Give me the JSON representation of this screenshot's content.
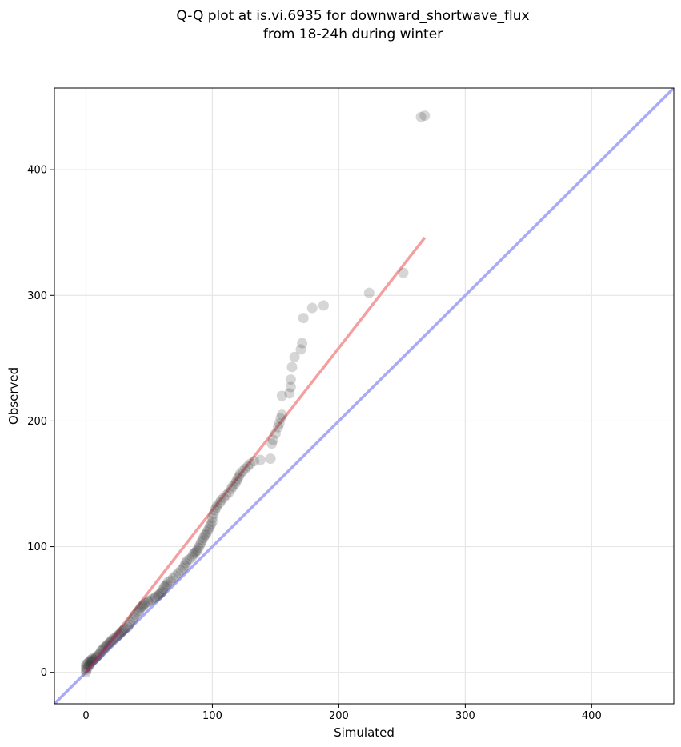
{
  "chart_data": {
    "type": "scatter",
    "title": "Q-Q plot at is.vi.6935 for downward_shortwave_flux",
    "subtitle": "from 18-24h during winter",
    "xlabel": "Simulated",
    "ylabel": "Observed",
    "xlim": [
      -25,
      465
    ],
    "ylim": [
      -25,
      465
    ],
    "xticks": [
      0,
      100,
      200,
      300,
      400
    ],
    "yticks": [
      0,
      100,
      200,
      300,
      400
    ],
    "grid": true,
    "colors": {
      "points": "#333333",
      "fit_line": "#f4a0a0",
      "identity_line": "#aaaaf5",
      "low_segment": "#a0306e"
    },
    "points": [
      [
        0,
        0
      ],
      [
        0,
        2
      ],
      [
        0,
        4
      ],
      [
        0,
        6
      ],
      [
        1,
        3
      ],
      [
        1,
        7
      ],
      [
        2,
        5
      ],
      [
        2,
        8
      ],
      [
        3,
        6
      ],
      [
        3,
        9
      ],
      [
        4,
        8
      ],
      [
        4,
        10
      ],
      [
        5,
        9
      ],
      [
        5,
        11
      ],
      [
        6,
        10
      ],
      [
        7,
        11
      ],
      [
        8,
        12
      ],
      [
        9,
        13
      ],
      [
        10,
        14
      ],
      [
        11,
        15
      ],
      [
        12,
        17
      ],
      [
        13,
        18
      ],
      [
        14,
        19
      ],
      [
        15,
        20
      ],
      [
        16,
        21
      ],
      [
        17,
        22
      ],
      [
        18,
        23
      ],
      [
        19,
        24
      ],
      [
        20,
        25
      ],
      [
        21,
        26
      ],
      [
        22,
        27
      ],
      [
        24,
        28
      ],
      [
        25,
        29
      ],
      [
        26,
        30
      ],
      [
        27,
        31
      ],
      [
        28,
        32
      ],
      [
        29,
        33
      ],
      [
        30,
        34
      ],
      [
        31,
        35
      ],
      [
        33,
        36
      ],
      [
        34,
        38
      ],
      [
        35,
        40
      ],
      [
        37,
        42
      ],
      [
        38,
        44
      ],
      [
        39,
        46
      ],
      [
        41,
        48
      ],
      [
        42,
        49
      ],
      [
        43,
        51
      ],
      [
        44,
        52
      ],
      [
        45,
        53
      ],
      [
        46,
        54
      ],
      [
        47,
        55
      ],
      [
        49,
        56
      ],
      [
        50,
        57
      ],
      [
        52,
        58
      ],
      [
        54,
        59
      ],
      [
        55,
        60
      ],
      [
        57,
        61
      ],
      [
        58,
        62
      ],
      [
        59,
        63
      ],
      [
        60,
        64
      ],
      [
        61,
        66
      ],
      [
        62,
        68
      ],
      [
        63,
        69
      ],
      [
        64,
        70
      ],
      [
        65,
        72
      ],
      [
        67,
        73
      ],
      [
        69,
        75
      ],
      [
        71,
        77
      ],
      [
        73,
        79
      ],
      [
        75,
        81
      ],
      [
        77,
        83
      ],
      [
        78,
        85
      ],
      [
        79,
        87
      ],
      [
        80,
        89
      ],
      [
        82,
        90
      ],
      [
        84,
        92
      ],
      [
        85,
        94
      ],
      [
        86,
        95
      ],
      [
        87,
        96
      ],
      [
        88,
        97
      ],
      [
        89,
        99
      ],
      [
        90,
        101
      ],
      [
        91,
        103
      ],
      [
        92,
        105
      ],
      [
        93,
        107
      ],
      [
        94,
        109
      ],
      [
        95,
        110
      ],
      [
        96,
        112
      ],
      [
        97,
        114
      ],
      [
        98,
        116
      ],
      [
        99,
        118
      ],
      [
        100,
        120
      ],
      [
        100,
        123
      ],
      [
        101,
        126
      ],
      [
        102,
        129
      ],
      [
        103,
        131
      ],
      [
        104,
        133
      ],
      [
        106,
        135
      ],
      [
        107,
        137
      ],
      [
        109,
        139
      ],
      [
        111,
        141
      ],
      [
        113,
        143
      ],
      [
        115,
        146
      ],
      [
        116,
        148
      ],
      [
        118,
        150
      ],
      [
        119,
        152
      ],
      [
        120,
        154
      ],
      [
        121,
        156
      ],
      [
        122,
        158
      ],
      [
        124,
        160
      ],
      [
        126,
        162
      ],
      [
        128,
        164
      ],
      [
        130,
        166
      ],
      [
        133,
        168
      ],
      [
        138,
        169
      ],
      [
        146,
        170
      ],
      [
        147,
        182
      ],
      [
        148,
        185
      ],
      [
        150,
        190
      ],
      [
        152,
        195
      ],
      [
        153,
        198
      ],
      [
        154,
        202
      ],
      [
        155,
        205
      ],
      [
        155,
        220
      ],
      [
        161,
        222
      ],
      [
        162,
        227
      ],
      [
        162,
        233
      ],
      [
        163,
        243
      ],
      [
        165,
        251
      ],
      [
        170,
        257
      ],
      [
        171,
        262
      ],
      [
        172,
        282
      ],
      [
        179,
        290
      ],
      [
        188,
        292
      ],
      [
        224,
        302
      ],
      [
        251,
        318
      ],
      [
        265,
        442
      ],
      [
        268,
        443
      ]
    ],
    "fit_line": [
      [
        0,
        0
      ],
      [
        268,
        346
      ]
    ],
    "identity_line": [
      [
        -25,
        -25
      ],
      [
        465,
        465
      ]
    ]
  }
}
